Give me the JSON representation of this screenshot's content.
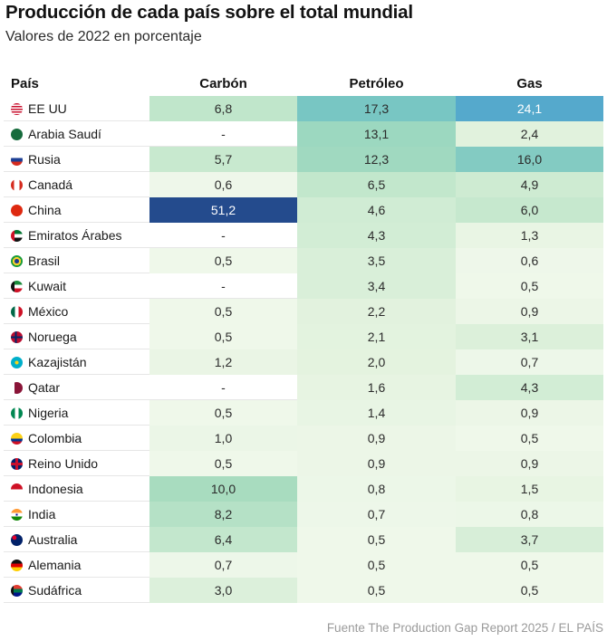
{
  "header": {
    "title": "Producción de cada país sobre el total mundial",
    "subtitle": "Valores de 2022 en porcentaje"
  },
  "footer": {
    "source": "Fuente The Production Gap Report 2025 / EL PAÍS"
  },
  "chart_data": {
    "type": "table",
    "title": "Producción de cada país sobre el total mundial",
    "subtitle": "Valores de 2022 en porcentaje",
    "columns": [
      "País",
      "Carbón",
      "Petróleo",
      "Gas"
    ],
    "color_scale": {
      "low": "#f1f8ec",
      "mid": "#bfe4c8",
      "high_teal": "#74c6c2",
      "high_blue": "#4fa8cc",
      "max": "#234a8f",
      "empty": "#ffffff"
    },
    "rows": [
      {
        "country": "EE UU",
        "flag": "us-flag-icon",
        "carbon": "6,8",
        "petroleo": "17,3",
        "gas": "24,1"
      },
      {
        "country": "Arabia Saudí",
        "flag": "saudi-arabia-flag-icon",
        "carbon": "-",
        "petroleo": "13,1",
        "gas": "2,4"
      },
      {
        "country": "Rusia",
        "flag": "russia-flag-icon",
        "carbon": "5,7",
        "petroleo": "12,3",
        "gas": "16,0"
      },
      {
        "country": "Canadá",
        "flag": "canada-flag-icon",
        "carbon": "0,6",
        "petroleo": "6,5",
        "gas": "4,9"
      },
      {
        "country": "China",
        "flag": "china-flag-icon",
        "carbon": "51,2",
        "petroleo": "4,6",
        "gas": "6,0"
      },
      {
        "country": "Emiratos Árabes",
        "flag": "uae-flag-icon",
        "carbon": "-",
        "petroleo": "4,3",
        "gas": "1,3"
      },
      {
        "country": "Brasil",
        "flag": "brazil-flag-icon",
        "carbon": "0,5",
        "petroleo": "3,5",
        "gas": "0,6"
      },
      {
        "country": "Kuwait",
        "flag": "kuwait-flag-icon",
        "carbon": "-",
        "petroleo": "3,4",
        "gas": "0,5"
      },
      {
        "country": "México",
        "flag": "mexico-flag-icon",
        "carbon": "0,5",
        "petroleo": "2,2",
        "gas": "0,9"
      },
      {
        "country": "Noruega",
        "flag": "norway-flag-icon",
        "carbon": "0,5",
        "petroleo": "2,1",
        "gas": "3,1"
      },
      {
        "country": "Kazajistán",
        "flag": "kazakhstan-flag-icon",
        "carbon": "1,2",
        "petroleo": "2,0",
        "gas": "0,7"
      },
      {
        "country": "Qatar",
        "flag": "qatar-flag-icon",
        "carbon": "-",
        "petroleo": "1,6",
        "gas": "4,3"
      },
      {
        "country": "Nigeria",
        "flag": "nigeria-flag-icon",
        "carbon": "0,5",
        "petroleo": "1,4",
        "gas": "0,9"
      },
      {
        "country": "Colombia",
        "flag": "colombia-flag-icon",
        "carbon": "1,0",
        "petroleo": "0,9",
        "gas": "0,5"
      },
      {
        "country": "Reino Unido",
        "flag": "uk-flag-icon",
        "carbon": "0,5",
        "petroleo": "0,9",
        "gas": "0,9"
      },
      {
        "country": "Indonesia",
        "flag": "indonesia-flag-icon",
        "carbon": "10,0",
        "petroleo": "0,8",
        "gas": "1,5"
      },
      {
        "country": "India",
        "flag": "india-flag-icon",
        "carbon": "8,2",
        "petroleo": "0,7",
        "gas": "0,8"
      },
      {
        "country": "Australia",
        "flag": "australia-flag-icon",
        "carbon": "6,4",
        "petroleo": "0,5",
        "gas": "3,7"
      },
      {
        "country": "Alemania",
        "flag": "germany-flag-icon",
        "carbon": "0,7",
        "petroleo": "0,5",
        "gas": "0,5"
      },
      {
        "country": "Sudáfrica",
        "flag": "south-africa-flag-icon",
        "carbon": "3,0",
        "petroleo": "0,5",
        "gas": "0,5"
      }
    ]
  }
}
